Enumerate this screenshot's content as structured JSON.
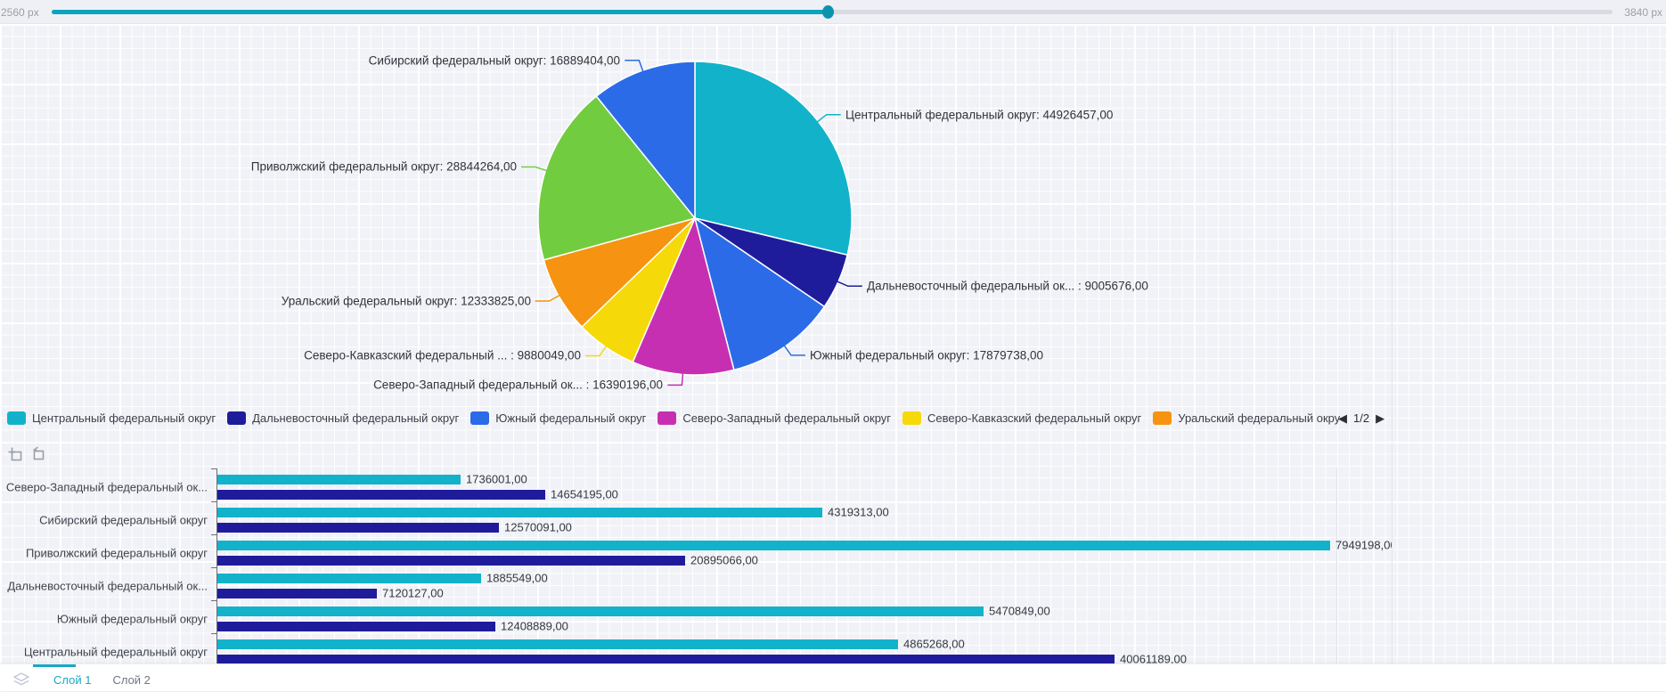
{
  "topbar": {
    "min_label": "2560 px",
    "max_label": "3840 px"
  },
  "colors": {
    "accent": "#16a9c4",
    "teal": "#12b2cb",
    "navy": "#1f1c9c",
    "blue": "#2b6be8",
    "magenta": "#c72fb2",
    "yellow": "#f6d908",
    "orange": "#f69310",
    "green": "#72cc3f"
  },
  "legend": {
    "page": "1/2",
    "items": [
      {
        "label": "Центральный федеральный округ",
        "color": "#12b2cb"
      },
      {
        "label": "Дальневосточный федеральный округ",
        "color": "#1f1c9c"
      },
      {
        "label": "Южный федеральный округ",
        "color": "#2b6be8"
      },
      {
        "label": "Северо-Западный федеральный округ",
        "color": "#c72fb2"
      },
      {
        "label": "Северо-Кавказский федеральный округ",
        "color": "#f6d908"
      },
      {
        "label": "Уральский федеральный окру",
        "color": "#f69310"
      }
    ]
  },
  "chart_data": [
    {
      "type": "pie",
      "title": "",
      "legend_position": "bottom",
      "series": [
        {
          "name": "Центральный федеральный округ",
          "value": 44926457,
          "color": "#12b2cb",
          "callout_label": "Центральный федеральный округ: 44926457,00"
        },
        {
          "name": "Дальневосточный федеральный округ",
          "value": 9005676,
          "color": "#1f1c9c",
          "callout_label": "Дальневосточный федеральный ок... : 9005676,00"
        },
        {
          "name": "Южный федеральный округ",
          "value": 17879738,
          "color": "#2b6be8",
          "callout_label": "Южный федеральный округ: 17879738,00"
        },
        {
          "name": "Северо-Западный федеральный округ",
          "value": 16390196,
          "color": "#c72fb2",
          "callout_label": "Северо-Западный федеральный ок... : 16390196,00"
        },
        {
          "name": "Северо-Кавказский федеральный округ",
          "value": 9880049,
          "color": "#f6d908",
          "callout_label": "Северо-Кавказский федеральный ... : 9880049,00"
        },
        {
          "name": "Уральский федеральный округ",
          "value": 12333825,
          "color": "#f69310",
          "callout_label": "Уральский федеральный округ: 12333825,00"
        },
        {
          "name": "Приволжский федеральный округ",
          "value": 28844264,
          "color": "#72cc3f",
          "callout_label": "Приволжский федеральный округ: 28844264,00"
        },
        {
          "name": "Сибирский федеральный округ",
          "value": 16889404,
          "color": "#2b6be8",
          "callout_label": "Сибирский федеральный округ: 16889404,00"
        }
      ]
    },
    {
      "type": "bar",
      "orientation": "horizontal",
      "grid": false,
      "decimal_suffix": ",00",
      "categories": [
        "Северо-Западный федеральный ок...",
        "Сибирский федеральный округ",
        "Приволжский федеральный округ",
        "Дальневосточный федеральный ок...",
        "Южный федеральный округ",
        "Центральный федеральный округ"
      ],
      "series": [
        {
          "color": "#12b2cb",
          "xlim": [
            0,
            8000000
          ],
          "values": [
            1736001,
            4319313,
            7949198,
            1885549,
            5470849,
            4865268
          ]
        },
        {
          "color": "#1f1c9c",
          "xlim": [
            0,
            50000000
          ],
          "values": [
            14654195,
            12570091,
            20895066,
            7120127,
            12408889,
            40061189
          ]
        }
      ]
    }
  ],
  "footer": {
    "tabs": [
      {
        "label": "Слой 1",
        "active": true
      },
      {
        "label": "Слой 2",
        "active": false
      }
    ]
  }
}
